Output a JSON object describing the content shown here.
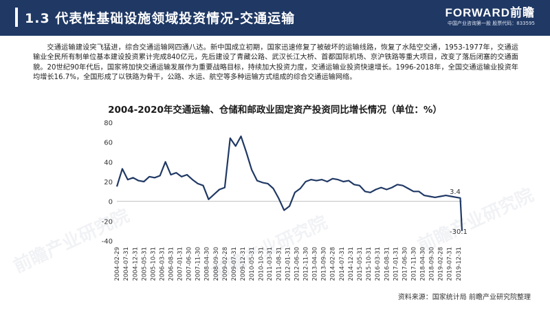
{
  "header": {
    "title": "1.3 代表性基础设施领域投资情况-交通运输",
    "brand_logo": "FORWARD前瞻",
    "brand_sub": "中国产业咨询第一股 股票代码：833595"
  },
  "intro": "交通运输建设突飞猛进，综合交通运输网四通八达。新中国成立初期，国家迅速修复了被破坏的运输线路，恢复了水陆空交通，1953-1977年，交通运输业全民所有制单位基本建设投资累计完成840亿元，先后建设了青藏公路、武汉长江大桥、首都国际机场、京沪铁路等重大项目，改变了落后闭塞的交通面貌。20世纪90年代后，国家将加快交通运输发展作为重要战略目标，持续加大投资力度，交通运输业投资快速增长。1996-2018年，全国交通运输业投资年均增长16.7%，全国形成了以铁路为骨干，公路、水运、航空等多种运输方式组成的综合交通运输网络。",
  "source": "资料来源：国家统计局 前瞻产业研究院整理",
  "watermarks": [
    "前瞻产业研究院",
    "前瞻产业研究院",
    "前瞻产业研究院"
  ],
  "colors": {
    "header": "#1f3864",
    "line": "#1f3864",
    "background": "#ffffff"
  },
  "chart_data": {
    "type": "line",
    "title": "2004-2020年交通运输、仓储和邮政业固定资产投资同比增长情况（单位：%）",
    "xlabel": "",
    "ylabel": "",
    "ylim": [
      -40,
      80
    ],
    "yticks": [
      -40,
      -20,
      0,
      20,
      40,
      60,
      80
    ],
    "xticks": [
      "2004-02-29",
      "2004-07-31",
      "2004-12-31",
      "2005-05-31",
      "2005-10-31",
      "2006-03-31",
      "2006-08-31",
      "2007-01-31",
      "2007-06-30",
      "2007-11-30",
      "2008-04-30",
      "2008-09-30",
      "2009-02-28",
      "2009-07-31",
      "2009-12-31",
      "2010-05-31",
      "2010-10-31",
      "2011-03-31",
      "2011-08-31",
      "2012-01-31",
      "2012-06-30",
      "2012-11-30",
      "2013-04-30",
      "2013-09-30",
      "2014-02-28",
      "2014-07-31",
      "2014-12-31",
      "2015-05-31",
      "2015-10-31",
      "2016-03-31",
      "2016-08-31",
      "2017-01-31",
      "2017-06-30",
      "2017-11-30",
      "2018-04-30",
      "2018-09-30",
      "2019-02-28",
      "2019-07-31",
      "2019-12-31"
    ],
    "grid": false,
    "legend": "none",
    "annotations": [
      {
        "x": "2020-02-29",
        "y": 3.4,
        "text": "3.4"
      },
      {
        "x": "2020-02-29",
        "y": -30.1,
        "text": "-30.1"
      }
    ],
    "series": [
      {
        "name": "",
        "x": [
          "2004-02-29",
          "2004-05-31",
          "2004-08-31",
          "2004-11-30",
          "2005-02-28",
          "2005-05-31",
          "2005-08-31",
          "2005-11-30",
          "2006-02-28",
          "2006-05-31",
          "2006-08-31",
          "2006-11-30",
          "2007-02-28",
          "2007-05-31",
          "2007-08-31",
          "2007-11-30",
          "2008-02-29",
          "2008-05-31",
          "2008-08-31",
          "2008-11-30",
          "2009-02-28",
          "2009-05-31",
          "2009-08-31",
          "2009-11-30",
          "2010-02-28",
          "2010-05-31",
          "2010-08-31",
          "2010-11-30",
          "2011-02-28",
          "2011-05-31",
          "2011-08-31",
          "2011-11-30",
          "2012-02-29",
          "2012-05-31",
          "2012-08-31",
          "2012-11-30",
          "2013-02-28",
          "2013-05-31",
          "2013-08-31",
          "2013-11-30",
          "2014-02-28",
          "2014-05-31",
          "2014-08-31",
          "2014-11-30",
          "2015-02-28",
          "2015-05-31",
          "2015-08-31",
          "2015-11-30",
          "2016-02-29",
          "2016-05-31",
          "2016-08-31",
          "2016-11-30",
          "2017-02-28",
          "2017-05-31",
          "2017-08-31",
          "2017-11-30",
          "2018-02-28",
          "2018-05-31",
          "2018-08-31",
          "2018-11-30",
          "2019-02-28",
          "2019-05-31",
          "2019-08-31",
          "2019-11-30",
          "2020-01-31",
          "2020-02-29"
        ],
        "y": [
          15,
          33,
          22,
          24,
          21,
          20,
          25,
          24,
          26,
          40,
          27,
          29,
          25,
          27,
          22,
          18,
          16,
          2,
          7,
          12,
          14,
          64,
          56,
          66,
          50,
          32,
          21,
          19,
          18,
          13,
          3,
          -9,
          -5,
          9,
          13,
          20,
          22,
          21,
          22,
          20,
          23,
          22,
          20,
          21,
          17,
          16,
          10,
          9,
          12,
          14,
          12,
          14,
          17,
          16,
          13,
          10,
          10,
          6,
          5,
          4,
          5,
          6,
          5,
          4,
          3.4,
          -30.1
        ]
      }
    ]
  }
}
